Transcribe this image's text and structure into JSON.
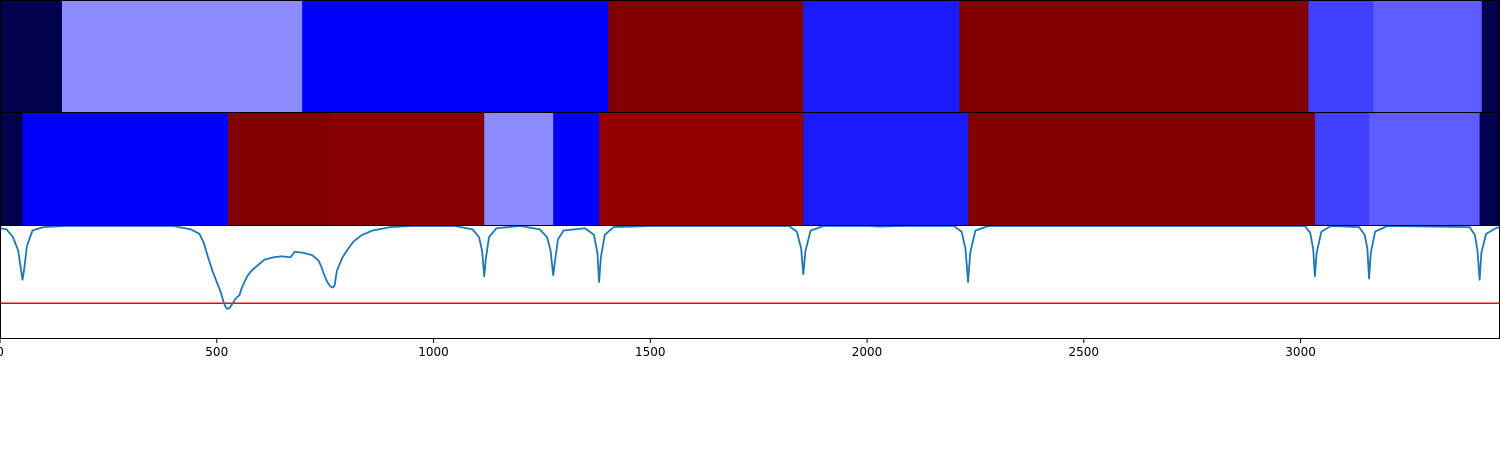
{
  "chart_data": {
    "type": "heatmap",
    "title": "",
    "xlabel": "",
    "ylabel": "",
    "xlim": [
      0,
      3460
    ],
    "xticks": [
      {
        "value": 0,
        "label": "0"
      },
      {
        "value": 500,
        "label": "500"
      },
      {
        "value": 1000,
        "label": "1000"
      },
      {
        "value": 1500,
        "label": "1500"
      },
      {
        "value": 2000,
        "label": "2000"
      },
      {
        "value": 2500,
        "label": "2500"
      },
      {
        "value": 3000,
        "label": "3000"
      }
    ],
    "rows": [
      {
        "segments": [
          {
            "start": 0,
            "end": 143,
            "color": "#00004c"
          },
          {
            "start": 143,
            "end": 697,
            "color": "#8c8cff"
          },
          {
            "start": 697,
            "end": 1403,
            "color": "#0000ff"
          },
          {
            "start": 1403,
            "end": 1853,
            "color": "#800000"
          },
          {
            "start": 1853,
            "end": 2213,
            "color": "#1a1aff"
          },
          {
            "start": 2213,
            "end": 3018,
            "color": "#800000"
          },
          {
            "start": 3018,
            "end": 3168,
            "color": "#4040ff"
          },
          {
            "start": 3168,
            "end": 3418,
            "color": "#5c5cff"
          },
          {
            "start": 3418,
            "end": 3460,
            "color": "#00004c"
          }
        ]
      },
      {
        "segments": [
          {
            "start": 0,
            "end": 52,
            "color": "#00004c"
          },
          {
            "start": 52,
            "end": 526,
            "color": "#0000ff"
          },
          {
            "start": 526,
            "end": 761,
            "color": "#800000"
          },
          {
            "start": 761,
            "end": 1117,
            "color": "#880000"
          },
          {
            "start": 1117,
            "end": 1276,
            "color": "#8c8cff"
          },
          {
            "start": 1276,
            "end": 1382,
            "color": "#0000ff"
          },
          {
            "start": 1382,
            "end": 1853,
            "color": "#930000"
          },
          {
            "start": 1853,
            "end": 2233,
            "color": "#1a1aff"
          },
          {
            "start": 2233,
            "end": 3033,
            "color": "#800000"
          },
          {
            "start": 3033,
            "end": 3158,
            "color": "#4040ff"
          },
          {
            "start": 3158,
            "end": 3413,
            "color": "#5c5cff"
          },
          {
            "start": 3413,
            "end": 3460,
            "color": "#00004c"
          }
        ]
      }
    ],
    "line": {
      "color": "#1f77b4",
      "ylim": [
        0,
        1
      ],
      "points": [
        [
          0,
          0.98
        ],
        [
          15,
          0.97
        ],
        [
          30,
          0.9
        ],
        [
          42,
          0.78
        ],
        [
          48,
          0.62
        ],
        [
          52,
          0.52
        ],
        [
          56,
          0.62
        ],
        [
          62,
          0.82
        ],
        [
          75,
          0.96
        ],
        [
          100,
          0.99
        ],
        [
          150,
          1.0
        ],
        [
          400,
          1.0
        ],
        [
          440,
          0.97
        ],
        [
          460,
          0.93
        ],
        [
          470,
          0.85
        ],
        [
          480,
          0.72
        ],
        [
          490,
          0.6
        ],
        [
          500,
          0.5
        ],
        [
          510,
          0.4
        ],
        [
          515,
          0.33
        ],
        [
          520,
          0.28
        ],
        [
          524,
          0.26
        ],
        [
          530,
          0.27
        ],
        [
          535,
          0.3
        ],
        [
          545,
          0.36
        ],
        [
          552,
          0.38
        ],
        [
          558,
          0.45
        ],
        [
          570,
          0.55
        ],
        [
          580,
          0.6
        ],
        [
          595,
          0.65
        ],
        [
          610,
          0.7
        ],
        [
          630,
          0.72
        ],
        [
          650,
          0.73
        ],
        [
          670,
          0.72
        ],
        [
          680,
          0.77
        ],
        [
          700,
          0.76
        ],
        [
          720,
          0.74
        ],
        [
          735,
          0.69
        ],
        [
          742,
          0.63
        ],
        [
          748,
          0.56
        ],
        [
          755,
          0.5
        ],
        [
          762,
          0.46
        ],
        [
          768,
          0.45
        ],
        [
          772,
          0.47
        ],
        [
          777,
          0.6
        ],
        [
          790,
          0.72
        ],
        [
          800,
          0.78
        ],
        [
          815,
          0.86
        ],
        [
          835,
          0.92
        ],
        [
          860,
          0.96
        ],
        [
          900,
          0.99
        ],
        [
          950,
          1.0
        ],
        [
          1050,
          1.0
        ],
        [
          1090,
          0.97
        ],
        [
          1105,
          0.9
        ],
        [
          1112,
          0.78
        ],
        [
          1117,
          0.55
        ],
        [
          1121,
          0.72
        ],
        [
          1128,
          0.9
        ],
        [
          1145,
          0.98
        ],
        [
          1200,
          1.0
        ],
        [
          1245,
          0.97
        ],
        [
          1262,
          0.9
        ],
        [
          1270,
          0.78
        ],
        [
          1276,
          0.56
        ],
        [
          1280,
          0.68
        ],
        [
          1287,
          0.88
        ],
        [
          1300,
          0.96
        ],
        [
          1350,
          0.98
        ],
        [
          1370,
          0.92
        ],
        [
          1378,
          0.76
        ],
        [
          1382,
          0.5
        ],
        [
          1386,
          0.72
        ],
        [
          1395,
          0.92
        ],
        [
          1415,
          0.99
        ],
        [
          1500,
          1.0
        ],
        [
          1820,
          1.0
        ],
        [
          1838,
          0.95
        ],
        [
          1848,
          0.8
        ],
        [
          1853,
          0.57
        ],
        [
          1858,
          0.78
        ],
        [
          1870,
          0.96
        ],
        [
          1900,
          1.0
        ],
        [
          2000,
          1.0
        ],
        [
          2030,
          0.995
        ],
        [
          2080,
          1.0
        ],
        [
          2200,
          1.0
        ],
        [
          2218,
          0.95
        ],
        [
          2227,
          0.8
        ],
        [
          2233,
          0.5
        ],
        [
          2238,
          0.76
        ],
        [
          2250,
          0.96
        ],
        [
          2280,
          1.0
        ],
        [
          3010,
          1.0
        ],
        [
          3022,
          0.94
        ],
        [
          3029,
          0.8
        ],
        [
          3033,
          0.55
        ],
        [
          3037,
          0.76
        ],
        [
          3048,
          0.95
        ],
        [
          3070,
          1.0
        ],
        [
          3135,
          0.99
        ],
        [
          3148,
          0.92
        ],
        [
          3154,
          0.8
        ],
        [
          3158,
          0.53
        ],
        [
          3162,
          0.76
        ],
        [
          3172,
          0.95
        ],
        [
          3200,
          1.0
        ],
        [
          3390,
          0.99
        ],
        [
          3402,
          0.92
        ],
        [
          3408,
          0.78
        ],
        [
          3413,
          0.52
        ],
        [
          3417,
          0.76
        ],
        [
          3428,
          0.93
        ],
        [
          3450,
          0.98
        ],
        [
          3460,
          0.99
        ]
      ]
    },
    "threshold": {
      "value": 0.31,
      "color": "#ff0000"
    }
  }
}
